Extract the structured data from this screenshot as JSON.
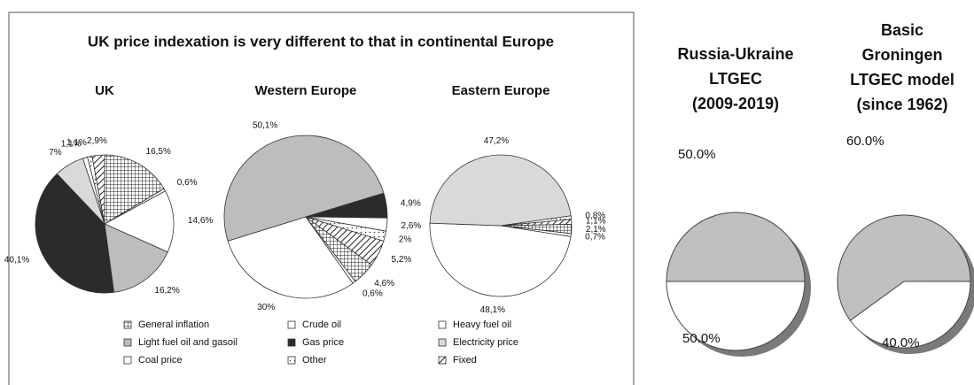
{
  "chart_data": [
    {
      "type": "multi-pie",
      "title": "UK price indexation is very different to that in continental Europe",
      "categories": [
        "General inflation",
        "Crude oil",
        "Heavy fuel oil",
        "Light fuel oil and gasoil",
        "Gas price",
        "Electricity price",
        "Coal price",
        "Other",
        "Fixed"
      ],
      "colors": [
        "#ffffff",
        "#ffffff",
        "#ffffff",
        "#bdbdbd",
        "#2b2b2b",
        "#d9d9d9",
        "#ffffff",
        "#ffffff",
        "#ffffff"
      ],
      "patterns": [
        "grid",
        "none",
        "none",
        "none",
        "none",
        "none",
        "none",
        "dots",
        "hatch"
      ],
      "pies": [
        {
          "name": "UK",
          "values": [
            16.5,
            0.6,
            14.6,
            16.2,
            40.1,
            7,
            1.1,
            1.1,
            2.9
          ],
          "value_labels": [
            "16,5%",
            "0,6%",
            "14,6%",
            "16,2%",
            "40,1%",
            "7%",
            "1,1%",
            "1,1%",
            "2,9%"
          ]
        },
        {
          "name": "Western Europe",
          "values": [
            4.6,
            0.6,
            30,
            50.1,
            4.9,
            null,
            2.6,
            2,
            5.2
          ],
          "value_labels": [
            "4,6%",
            "0,6%",
            "30%",
            "50,1%",
            "4,9%",
            null,
            "2,6%",
            "2%",
            "5,2%"
          ]
        },
        {
          "name": "Eastern Europe",
          "values": [
            2.1,
            0.7,
            48.1,
            null,
            null,
            47.2,
            null,
            0.8,
            1.1
          ],
          "value_labels": [
            "2,1%",
            "0,7%",
            "48,1%",
            null,
            null,
            "47,2%",
            null,
            "0,8%",
            "1,1%"
          ]
        }
      ]
    },
    {
      "type": "pie",
      "title": [
        "Russia-Ukraine",
        "LTGEC",
        "(2009-2019)"
      ],
      "values": [
        50.0,
        50.0
      ],
      "value_labels": [
        "50.0%",
        "50.0%"
      ],
      "colors": [
        "#c0c0c0",
        "#ffffff"
      ]
    },
    {
      "type": "pie",
      "title": [
        "Basic",
        "Groningen",
        "LTGEC model",
        "(since 1962)"
      ],
      "values": [
        60.0,
        40.0
      ],
      "value_labels": [
        "60.0%",
        "40.0%"
      ],
      "colors": [
        "#c0c0c0",
        "#ffffff"
      ]
    }
  ]
}
